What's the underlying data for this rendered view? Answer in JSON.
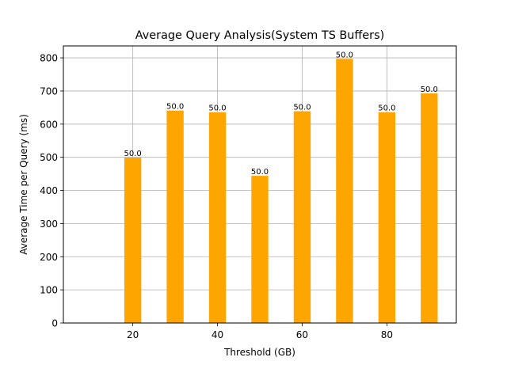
{
  "chart_data": {
    "type": "bar",
    "title": "Average Query Analysis(System TS Buffers)",
    "xlabel": "Threshold (GB)",
    "ylabel": "Average Time per Query (ms)",
    "x": [
      20,
      30,
      40,
      50,
      60,
      70,
      80,
      90
    ],
    "values": [
      499,
      641,
      636,
      444,
      639,
      797,
      636,
      693
    ],
    "bar_labels": [
      "50.0",
      "50.0",
      "50.0",
      "50.0",
      "50.0",
      "50.0",
      "50.0",
      "50.0"
    ],
    "xlim": [
      3.6,
      96.4
    ],
    "ylim": [
      0,
      836
    ],
    "xticks": [
      20,
      40,
      60,
      80
    ],
    "yticks": [
      0,
      100,
      200,
      300,
      400,
      500,
      600,
      700,
      800
    ],
    "bar_width": 4,
    "bar_color": "#ffa500",
    "grid": true
  }
}
